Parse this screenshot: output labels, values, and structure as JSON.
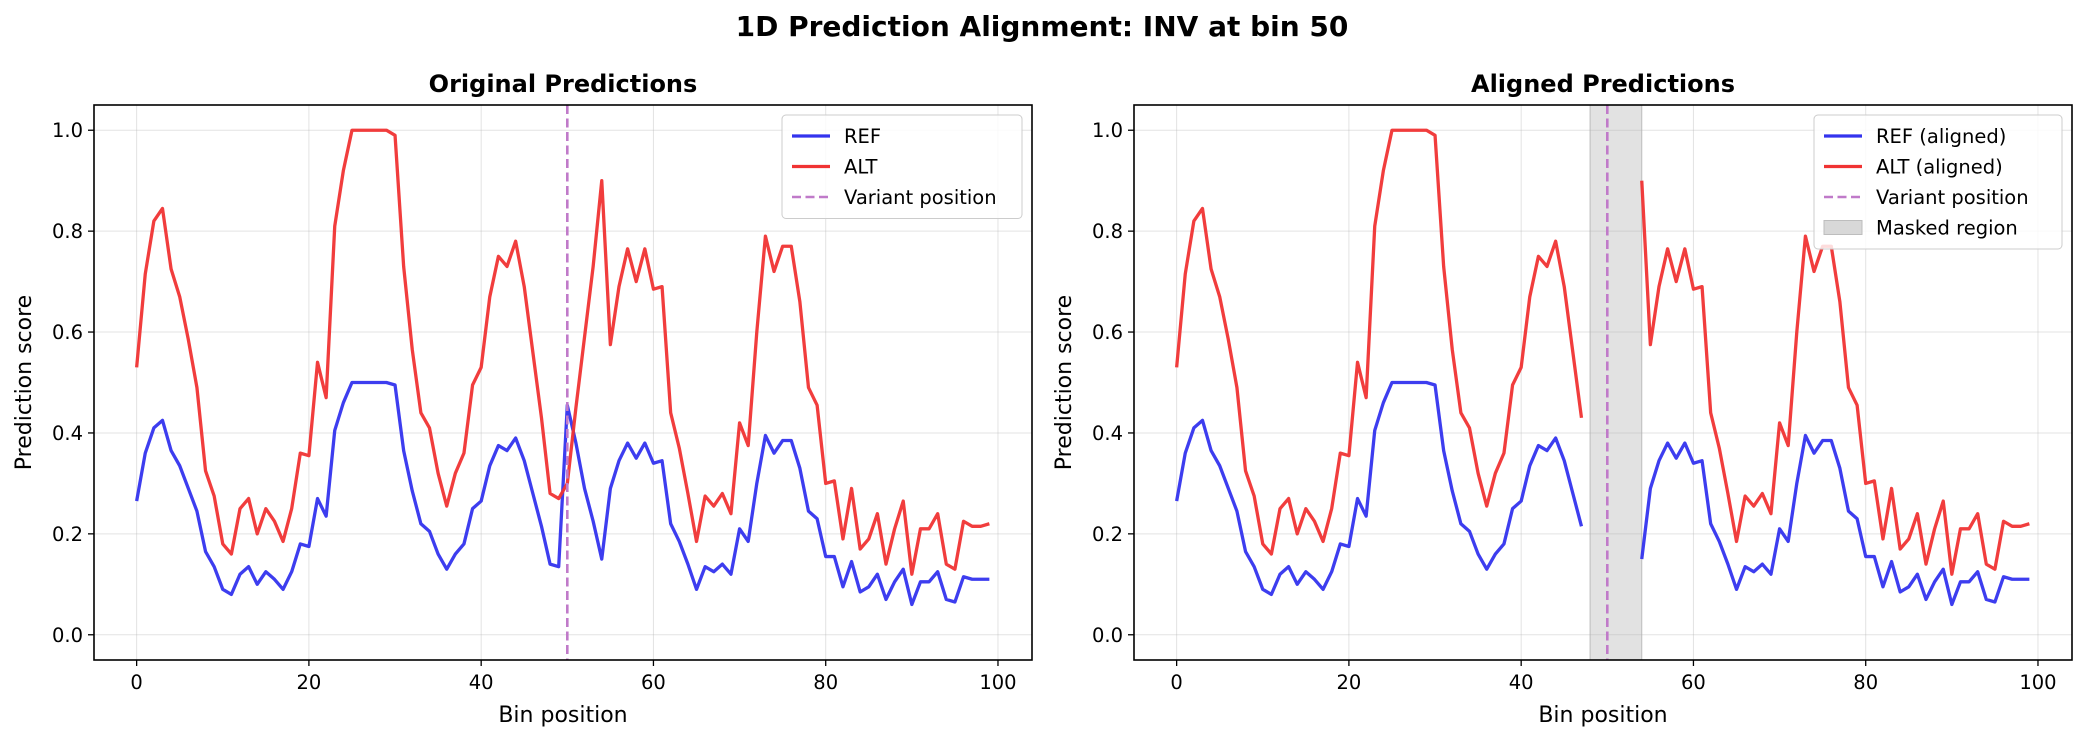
{
  "suptitle": "1D Prediction Alignment: INV at bin 50",
  "colors": {
    "ref": "#3333ee",
    "alt": "#f03333",
    "variant": "#c07ac9",
    "mask": "#d8d8d8"
  },
  "chart_data": [
    {
      "type": "line",
      "title": "Original Predictions",
      "xlabel": "Bin position",
      "ylabel": "Prediction score",
      "xlim": [
        -4.95,
        103.95
      ],
      "ylim": [
        -0.05,
        1.05
      ],
      "xticks": [
        0,
        20,
        40,
        60,
        80,
        100
      ],
      "yticks": [
        0.0,
        0.2,
        0.4,
        0.6,
        0.8,
        1.0
      ],
      "xtick_labels": [
        "0",
        "20",
        "40",
        "60",
        "80",
        "100"
      ],
      "ytick_labels": [
        "0.0",
        "0.2",
        "0.4",
        "0.6",
        "0.8",
        "1.0"
      ],
      "grid": true,
      "legend_position": "upper right",
      "variant_position": 50,
      "series": [
        {
          "name": "REF",
          "color_key": "ref",
          "x": [
            0,
            1,
            2,
            3,
            4,
            5,
            6,
            7,
            8,
            9,
            10,
            11,
            12,
            13,
            14,
            15,
            16,
            17,
            18,
            19,
            20,
            21,
            22,
            23,
            24,
            25,
            26,
            27,
            28,
            29,
            30,
            31,
            32,
            33,
            34,
            35,
            36,
            37,
            38,
            39,
            40,
            41,
            42,
            43,
            44,
            45,
            46,
            47,
            48,
            49,
            50,
            51,
            52,
            53,
            54,
            55,
            56,
            57,
            58,
            59,
            60,
            61,
            62,
            63,
            64,
            65,
            66,
            67,
            68,
            69,
            70,
            71,
            72,
            73,
            74,
            75,
            76,
            77,
            78,
            79,
            80,
            81,
            82,
            83,
            84,
            85,
            86,
            87,
            88,
            89,
            90,
            91,
            92,
            93,
            94,
            95,
            96,
            97,
            98,
            99
          ],
          "y": [
            0.265,
            0.36,
            0.41,
            0.425,
            0.365,
            0.335,
            0.29,
            0.245,
            0.165,
            0.135,
            0.09,
            0.08,
            0.12,
            0.135,
            0.1,
            0.125,
            0.11,
            0.09,
            0.125,
            0.18,
            0.175,
            0.27,
            0.235,
            0.405,
            0.46,
            0.5,
            0.5,
            0.5,
            0.5,
            0.5,
            0.495,
            0.365,
            0.285,
            0.22,
            0.205,
            0.16,
            0.13,
            0.16,
            0.18,
            0.25,
            0.265,
            0.335,
            0.375,
            0.365,
            0.39,
            0.345,
            0.28,
            0.215,
            0.14,
            0.135,
            0.455,
            0.38,
            0.29,
            0.225,
            0.15,
            0.29,
            0.345,
            0.38,
            0.35,
            0.38,
            0.34,
            0.345,
            0.22,
            0.185,
            0.14,
            0.09,
            0.135,
            0.125,
            0.14,
            0.12,
            0.21,
            0.185,
            0.3,
            0.395,
            0.36,
            0.385,
            0.385,
            0.33,
            0.245,
            0.23,
            0.155,
            0.155,
            0.095,
            0.145,
            0.085,
            0.095,
            0.12,
            0.07,
            0.105,
            0.13,
            0.06,
            0.105,
            0.105,
            0.125,
            0.07,
            0.065,
            0.115,
            0.11,
            0.11,
            0.11
          ]
        },
        {
          "name": "ALT",
          "color_key": "alt",
          "x": [
            0,
            1,
            2,
            3,
            4,
            5,
            6,
            7,
            8,
            9,
            10,
            11,
            12,
            13,
            14,
            15,
            16,
            17,
            18,
            19,
            20,
            21,
            22,
            23,
            24,
            25,
            26,
            27,
            28,
            29,
            30,
            31,
            32,
            33,
            34,
            35,
            36,
            37,
            38,
            39,
            40,
            41,
            42,
            43,
            44,
            45,
            46,
            47,
            48,
            49,
            50,
            51,
            52,
            53,
            54,
            55,
            56,
            57,
            58,
            59,
            60,
            61,
            62,
            63,
            64,
            65,
            66,
            67,
            68,
            69,
            70,
            71,
            72,
            73,
            74,
            75,
            76,
            77,
            78,
            79,
            80,
            81,
            82,
            83,
            84,
            85,
            86,
            87,
            88,
            89,
            90,
            91,
            92,
            93,
            94,
            95,
            96,
            97,
            98,
            99
          ],
          "y": [
            0.53,
            0.715,
            0.82,
            0.845,
            0.725,
            0.67,
            0.585,
            0.49,
            0.325,
            0.275,
            0.18,
            0.16,
            0.25,
            0.27,
            0.2,
            0.25,
            0.225,
            0.185,
            0.25,
            0.36,
            0.355,
            0.54,
            0.47,
            0.81,
            0.92,
            1.0,
            1.0,
            1.0,
            1.0,
            1.0,
            0.99,
            0.73,
            0.565,
            0.44,
            0.41,
            0.32,
            0.255,
            0.32,
            0.36,
            0.495,
            0.53,
            0.67,
            0.75,
            0.73,
            0.78,
            0.69,
            0.56,
            0.43,
            0.28,
            0.27,
            0.3,
            0.45,
            0.59,
            0.73,
            0.9,
            0.575,
            0.69,
            0.765,
            0.7,
            0.765,
            0.685,
            0.69,
            0.44,
            0.37,
            0.28,
            0.185,
            0.275,
            0.255,
            0.28,
            0.24,
            0.42,
            0.375,
            0.6,
            0.79,
            0.72,
            0.77,
            0.77,
            0.66,
            0.49,
            0.455,
            0.3,
            0.305,
            0.19,
            0.29,
            0.17,
            0.19,
            0.24,
            0.14,
            0.21,
            0.265,
            0.12,
            0.21,
            0.21,
            0.24,
            0.14,
            0.13,
            0.225,
            0.215,
            0.215,
            0.22
          ]
        }
      ],
      "legend": [
        "REF",
        "ALT",
        "Variant position"
      ]
    },
    {
      "type": "line",
      "title": "Aligned Predictions",
      "xlabel": "Bin position",
      "ylabel": "Prediction score",
      "xlim": [
        -4.95,
        103.95
      ],
      "ylim": [
        -0.05,
        1.05
      ],
      "xticks": [
        0,
        20,
        40,
        60,
        80,
        100
      ],
      "yticks": [
        0.0,
        0.2,
        0.4,
        0.6,
        0.8,
        1.0
      ],
      "xtick_labels": [
        "0",
        "20",
        "40",
        "60",
        "80",
        "100"
      ],
      "ytick_labels": [
        "0.0",
        "0.2",
        "0.4",
        "0.6",
        "0.8",
        "1.0"
      ],
      "grid": true,
      "legend_position": "upper right",
      "variant_position": 50,
      "masked_region": [
        48,
        54
      ],
      "series": [
        {
          "name": "REF (aligned)",
          "color_key": "ref",
          "x": [
            0,
            1,
            2,
            3,
            4,
            5,
            6,
            7,
            8,
            9,
            10,
            11,
            12,
            13,
            14,
            15,
            16,
            17,
            18,
            19,
            20,
            21,
            22,
            23,
            24,
            25,
            26,
            27,
            28,
            29,
            30,
            31,
            32,
            33,
            34,
            35,
            36,
            37,
            38,
            39,
            40,
            41,
            42,
            43,
            44,
            45,
            46,
            47,
            48,
            49,
            50,
            51,
            52,
            53,
            54,
            55,
            56,
            57,
            58,
            59,
            60,
            61,
            62,
            63,
            64,
            65,
            66,
            67,
            68,
            69,
            70,
            71,
            72,
            73,
            74,
            75,
            76,
            77,
            78,
            79,
            80,
            81,
            82,
            83,
            84,
            85,
            86,
            87,
            88,
            89,
            90,
            91,
            92,
            93,
            94,
            95,
            96,
            97,
            98,
            99
          ],
          "y": [
            0.265,
            0.36,
            0.41,
            0.425,
            0.365,
            0.335,
            0.29,
            0.245,
            0.165,
            0.135,
            0.09,
            0.08,
            0.12,
            0.135,
            0.1,
            0.125,
            0.11,
            0.09,
            0.125,
            0.18,
            0.175,
            0.27,
            0.235,
            0.405,
            0.46,
            0.5,
            0.5,
            0.5,
            0.5,
            0.5,
            0.495,
            0.365,
            0.285,
            0.22,
            0.205,
            0.16,
            0.13,
            0.16,
            0.18,
            0.25,
            0.265,
            0.335,
            0.375,
            0.365,
            0.39,
            0.345,
            0.28,
            0.215,
            null,
            null,
            null,
            null,
            null,
            null,
            0.15,
            0.29,
            0.345,
            0.38,
            0.35,
            0.38,
            0.34,
            0.345,
            0.22,
            0.185,
            0.14,
            0.09,
            0.135,
            0.125,
            0.14,
            0.12,
            0.21,
            0.185,
            0.3,
            0.395,
            0.36,
            0.385,
            0.385,
            0.33,
            0.245,
            0.23,
            0.155,
            0.155,
            0.095,
            0.145,
            0.085,
            0.095,
            0.12,
            0.07,
            0.105,
            0.13,
            0.06,
            0.105,
            0.105,
            0.125,
            0.07,
            0.065,
            0.115,
            0.11,
            0.11,
            0.11
          ]
        },
        {
          "name": "ALT (aligned)",
          "color_key": "alt",
          "x": [
            0,
            1,
            2,
            3,
            4,
            5,
            6,
            7,
            8,
            9,
            10,
            11,
            12,
            13,
            14,
            15,
            16,
            17,
            18,
            19,
            20,
            21,
            22,
            23,
            24,
            25,
            26,
            27,
            28,
            29,
            30,
            31,
            32,
            33,
            34,
            35,
            36,
            37,
            38,
            39,
            40,
            41,
            42,
            43,
            44,
            45,
            46,
            47,
            48,
            49,
            50,
            51,
            52,
            53,
            54,
            55,
            56,
            57,
            58,
            59,
            60,
            61,
            62,
            63,
            64,
            65,
            66,
            67,
            68,
            69,
            70,
            71,
            72,
            73,
            74,
            75,
            76,
            77,
            78,
            79,
            80,
            81,
            82,
            83,
            84,
            85,
            86,
            87,
            88,
            89,
            90,
            91,
            92,
            93,
            94,
            95,
            96,
            97,
            98,
            99
          ],
          "y": [
            0.53,
            0.715,
            0.82,
            0.845,
            0.725,
            0.67,
            0.585,
            0.49,
            0.325,
            0.275,
            0.18,
            0.16,
            0.25,
            0.27,
            0.2,
            0.25,
            0.225,
            0.185,
            0.25,
            0.36,
            0.355,
            0.54,
            0.47,
            0.81,
            0.92,
            1.0,
            1.0,
            1.0,
            1.0,
            1.0,
            0.99,
            0.73,
            0.565,
            0.44,
            0.41,
            0.32,
            0.255,
            0.32,
            0.36,
            0.495,
            0.53,
            0.67,
            0.75,
            0.73,
            0.78,
            0.69,
            0.56,
            0.43,
            null,
            null,
            null,
            null,
            null,
            null,
            0.9,
            0.575,
            0.69,
            0.765,
            0.7,
            0.765,
            0.685,
            0.69,
            0.44,
            0.37,
            0.28,
            0.185,
            0.275,
            0.255,
            0.28,
            0.24,
            0.42,
            0.375,
            0.6,
            0.79,
            0.72,
            0.77,
            0.77,
            0.66,
            0.49,
            0.455,
            0.3,
            0.305,
            0.19,
            0.29,
            0.17,
            0.19,
            0.24,
            0.14,
            0.21,
            0.265,
            0.12,
            0.21,
            0.21,
            0.24,
            0.14,
            0.13,
            0.225,
            0.215,
            0.215,
            0.22
          ]
        }
      ],
      "legend": [
        "REF (aligned)",
        "ALT (aligned)",
        "Variant position",
        "Masked region"
      ]
    }
  ]
}
